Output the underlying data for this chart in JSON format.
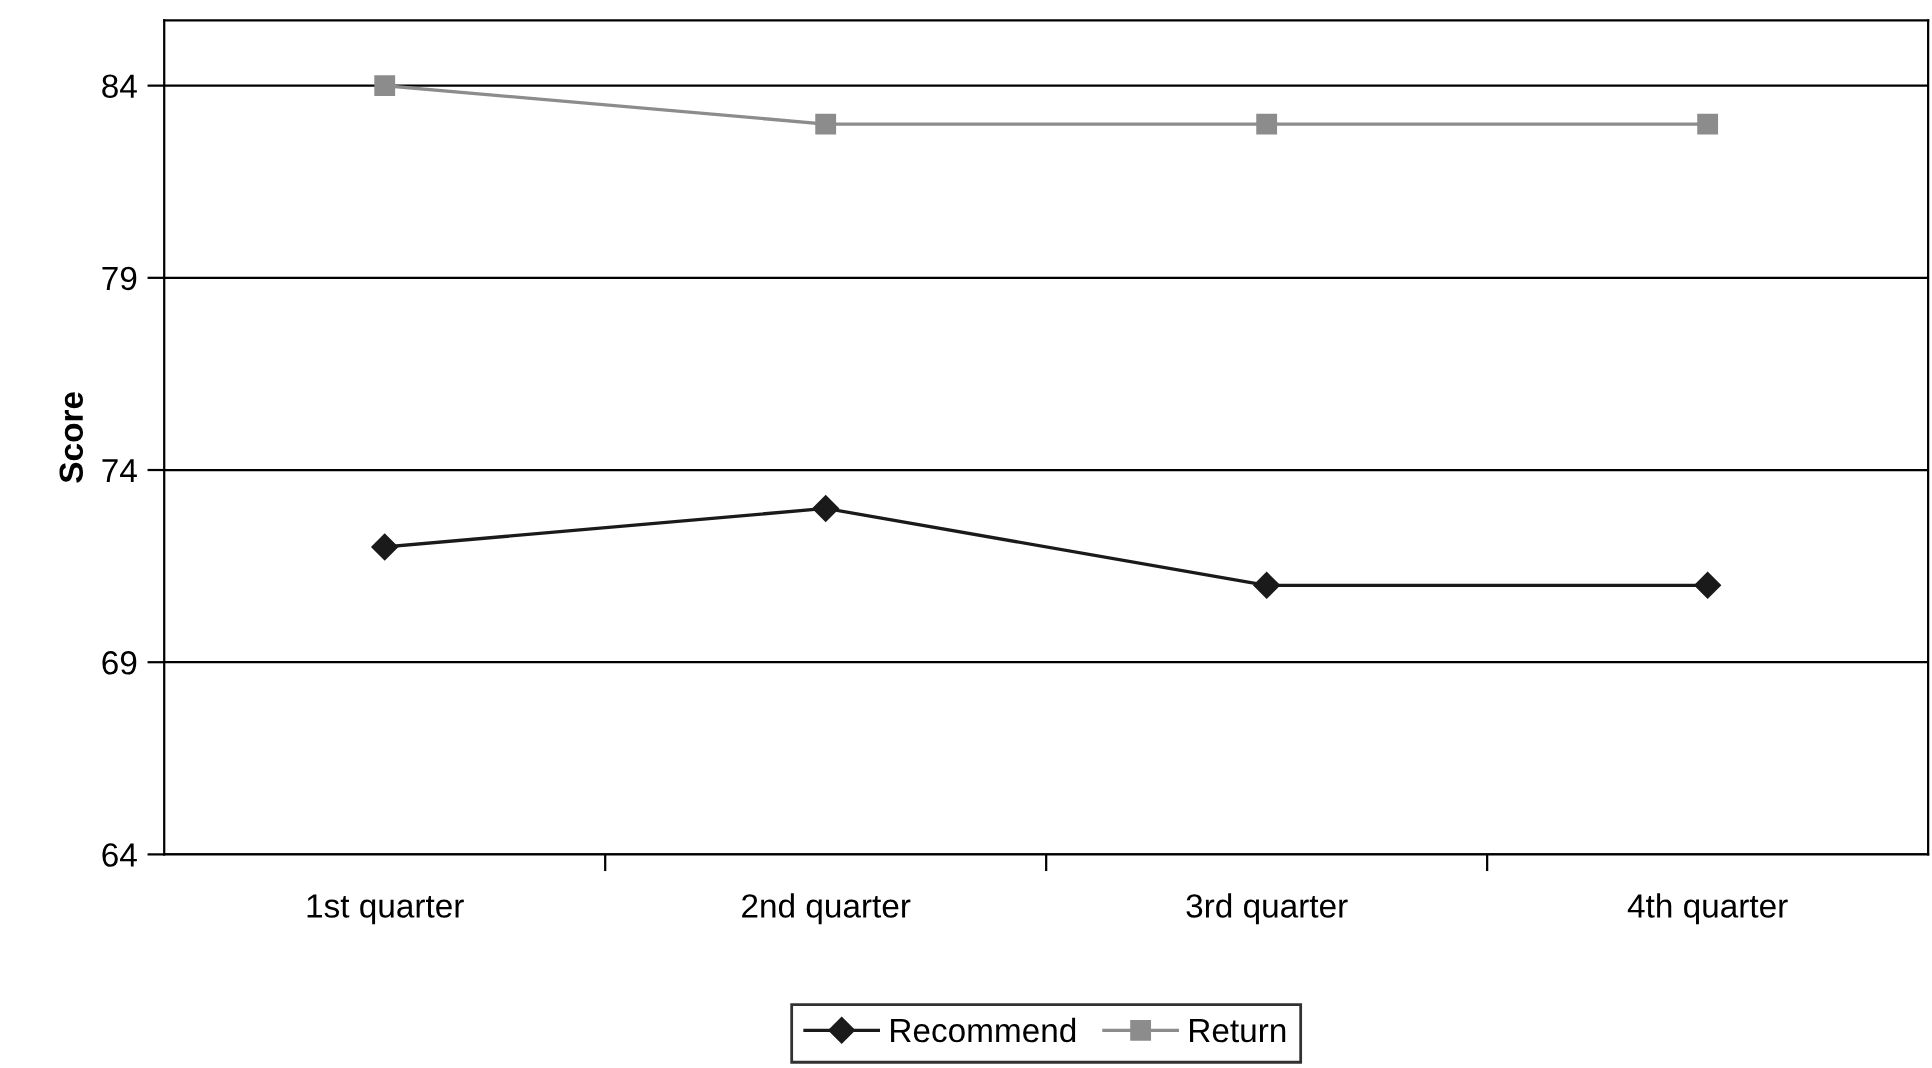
{
  "chart_data": {
    "type": "line",
    "ylabel": "Score",
    "categories": [
      "1st quarter",
      "2nd quarter",
      "3rd quarter",
      "4th quarter"
    ],
    "series": [
      {
        "name": "Recommend",
        "color": "#1a1a1a",
        "marker": "diamond",
        "values": [
          72,
          73,
          71,
          71
        ]
      },
      {
        "name": "Return",
        "color": "#8c8c8c",
        "marker": "square",
        "values": [
          84,
          83,
          83,
          83
        ]
      }
    ],
    "ylim": [
      64,
      85.7
    ],
    "yticks": [
      64,
      69,
      74,
      79,
      84
    ],
    "grid": "y",
    "legend": "bottom",
    "line_style": "solid"
  }
}
